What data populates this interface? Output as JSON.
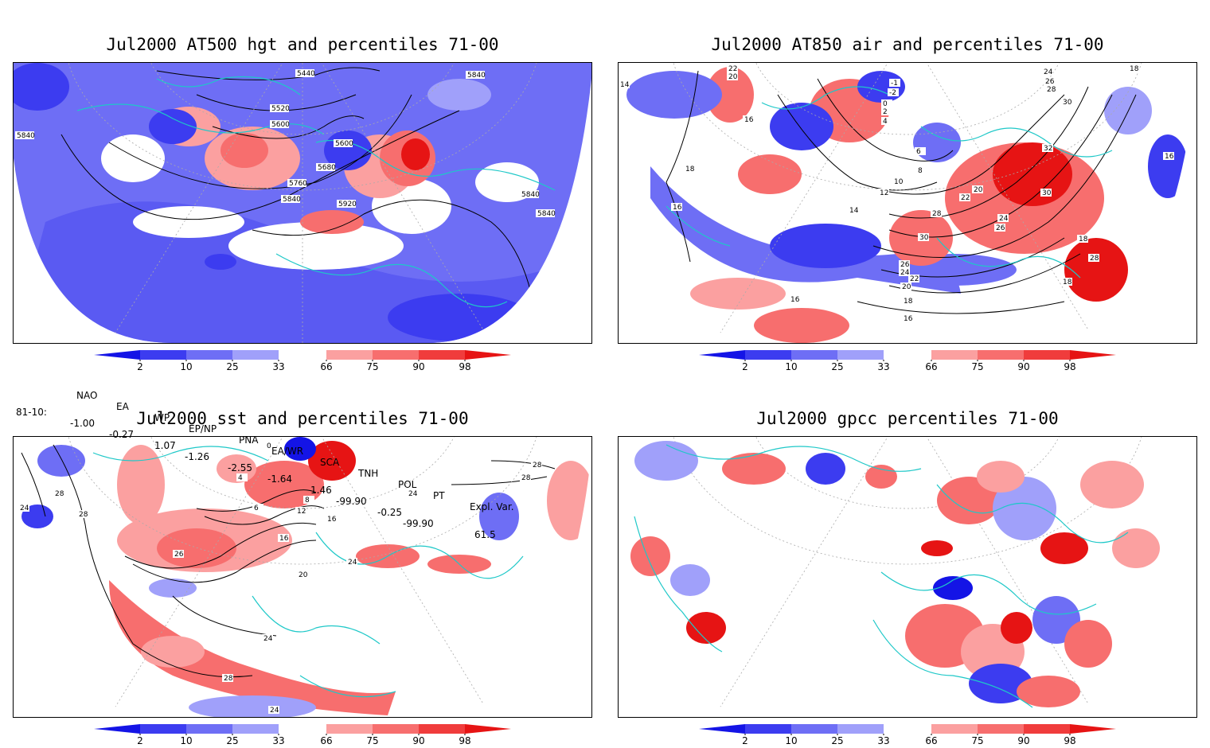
{
  "panels": [
    {
      "title": "Jul2000 AT500 hgt and percentiles 71-00"
    },
    {
      "title": "Jul2000 AT850 air and percentiles 71-00"
    },
    {
      "title": "Jul2000 sst and percentiles 71-00"
    },
    {
      "title": "Jul2000 gpcc percentiles 71-00"
    }
  ],
  "colorbar": {
    "ticks": [
      "2",
      "10",
      "25",
      "33",
      "66",
      "75",
      "90",
      "98"
    ],
    "colors": [
      "#1414e6",
      "#3c3cf0",
      "#6e6ef5",
      "#a0a0fa",
      "#ffffff",
      "#fba0a0",
      "#f76e6e",
      "#f03c3c",
      "#e61414"
    ]
  },
  "indices": {
    "headers": [
      "NAO",
      "EA",
      "WP",
      "EP/NP",
      "PNA",
      "EA/WR",
      "SCA",
      "TNH",
      "POL",
      "PT",
      "Expl. Var."
    ],
    "row_label": "81-10:",
    "values": [
      "-1.00",
      "-0.27",
      "1.07",
      "-1.26",
      "-2.55",
      "-1.64",
      "1.46",
      "-99.90",
      "-0.25",
      "-99.90",
      "61.5"
    ]
  },
  "contour_labels": {
    "hgt": [
      "5440",
      "5520",
      "5600",
      "5600",
      "5680",
      "5760",
      "5840",
      "5840",
      "5920",
      "5840",
      "5840",
      "5840"
    ],
    "air": [
      "22",
      "20",
      "14",
      "16",
      "18",
      "16",
      "-1",
      "-2",
      "0",
      "2",
      "4",
      "6",
      "8",
      "10",
      "12",
      "14",
      "20",
      "22",
      "24",
      "26",
      "28",
      "30",
      "26",
      "24",
      "22",
      "20",
      "18",
      "16",
      "16",
      "32",
      "30",
      "18",
      "28",
      "18",
      "16",
      "24",
      "26",
      "28",
      "30",
      "18"
    ],
    "sst": [
      "24",
      "28",
      "28",
      "26",
      "20",
      "24",
      "28",
      "24",
      "16",
      "12",
      "8",
      "6",
      "4",
      "0",
      "16",
      "24",
      "24",
      "28",
      "28"
    ]
  },
  "colors": {
    "coast": "#1ec8c8",
    "contour": "#000000",
    "grid": "#aaaaaa"
  }
}
